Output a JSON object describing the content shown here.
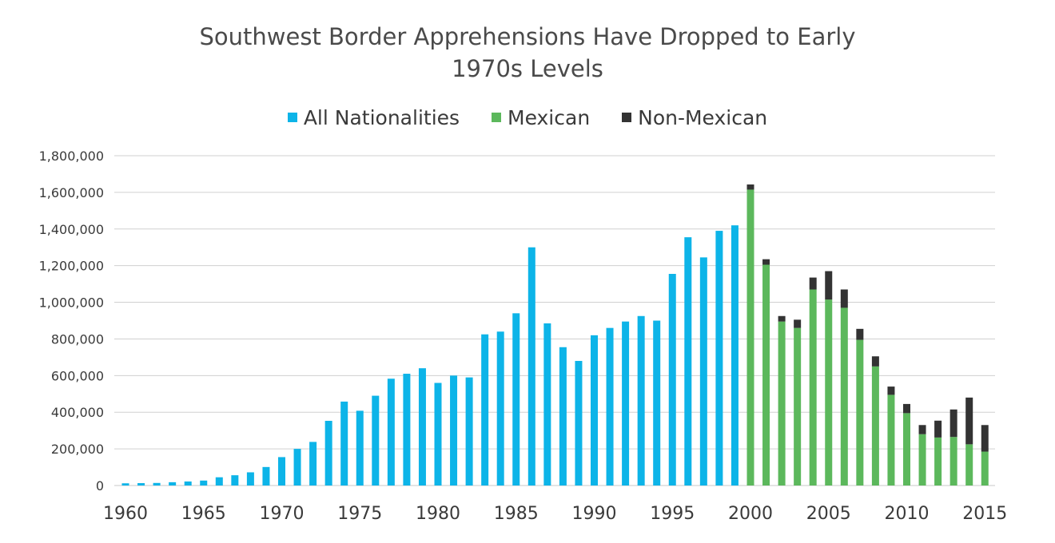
{
  "chart_data": {
    "type": "bar",
    "title_line1": "Southwest Border Apprehensions Have Dropped to Early",
    "title_line2": "1970s Levels",
    "legend": [
      {
        "name": "All Nationalities",
        "color": "#0db4e8"
      },
      {
        "name": "Mexican",
        "color": "#5cb85c"
      },
      {
        "name": "Non-Mexican",
        "color": "#333333"
      }
    ],
    "ylim": [
      0,
      1800000
    ],
    "yticks": [
      "0",
      "200,000",
      "400,000",
      "600,000",
      "800,000",
      "1,000,000",
      "1,200,000",
      "1,400,000",
      "1,600,000",
      "1,800,000"
    ],
    "xtick_labels": [
      "1960",
      "1965",
      "1970",
      "1975",
      "1980",
      "1985",
      "1990",
      "1995",
      "2000",
      "2005",
      "2010",
      "2015"
    ],
    "grid": true,
    "all_nationalities": {
      "years": [
        1960,
        1961,
        1962,
        1963,
        1964,
        1965,
        1966,
        1967,
        1968,
        1969,
        1970,
        1971,
        1972,
        1973,
        1974,
        1975,
        1976,
        1977,
        1978,
        1979,
        1980,
        1981,
        1982,
        1983,
        1984,
        1985,
        1986,
        1987,
        1988,
        1989,
        1990,
        1991,
        1992,
        1993,
        1994,
        1995,
        1996,
        1997,
        1998,
        1999
      ],
      "values": [
        12000,
        13000,
        14000,
        18000,
        22000,
        27000,
        45000,
        56000,
        72000,
        101000,
        155000,
        200000,
        238000,
        353000,
        458000,
        408000,
        490000,
        583000,
        610000,
        640000,
        560000,
        600000,
        590000,
        825000,
        840000,
        940000,
        1300000,
        885000,
        755000,
        680000,
        820000,
        860000,
        895000,
        925000,
        900000,
        1155000,
        1355000,
        1245000,
        1390000,
        1420000
      ]
    },
    "by_nationality": {
      "years": [
        2000,
        2001,
        2002,
        2003,
        2004,
        2005,
        2006,
        2007,
        2008,
        2009,
        2010,
        2011,
        2012,
        2013,
        2014,
        2015
      ],
      "mexican": [
        1615000,
        1205000,
        895000,
        860000,
        1070000,
        1015000,
        970000,
        795000,
        650000,
        495000,
        395000,
        280000,
        262000,
        265000,
        225000,
        185000
      ],
      "non_mexican": [
        28000,
        30000,
        30000,
        45000,
        65000,
        155000,
        100000,
        60000,
        55000,
        45000,
        50000,
        50000,
        92000,
        150000,
        255000,
        145000
      ]
    }
  }
}
